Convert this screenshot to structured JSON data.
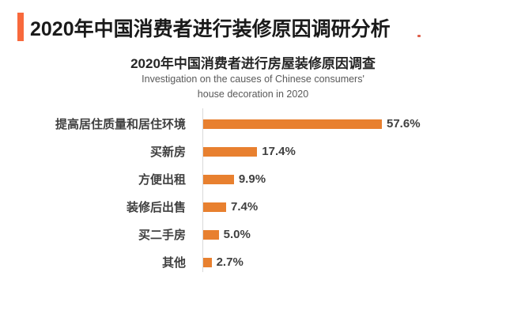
{
  "header": {
    "title": "2020年中国消费者进行装修原因调研分析",
    "accent_color": "#F8693C"
  },
  "artifact": {
    "color": "#D8442C"
  },
  "chart_data": {
    "type": "bar",
    "orientation": "horizontal",
    "title": "2020年中国消费者进行房屋装修原因调查",
    "subtitle_line1": "Investigation on the causes of Chinese consumers'",
    "subtitle_line2": "house decoration in 2020",
    "categories": [
      "提高居住质量和居住环境",
      "买新房",
      "方便出租",
      "装修后出售",
      "买二手房",
      "其他"
    ],
    "values": [
      57.6,
      17.4,
      9.9,
      7.4,
      5.0,
      2.7
    ],
    "value_labels": [
      "57.6%",
      "17.4%",
      "9.9%",
      "7.4%",
      "5.0%",
      "2.7%"
    ],
    "unit": "%",
    "xlim": [
      0,
      60
    ],
    "bar_color": "#E8802F",
    "axis_line_color": "#D9D9D9",
    "grid": false,
    "legend": false
  }
}
